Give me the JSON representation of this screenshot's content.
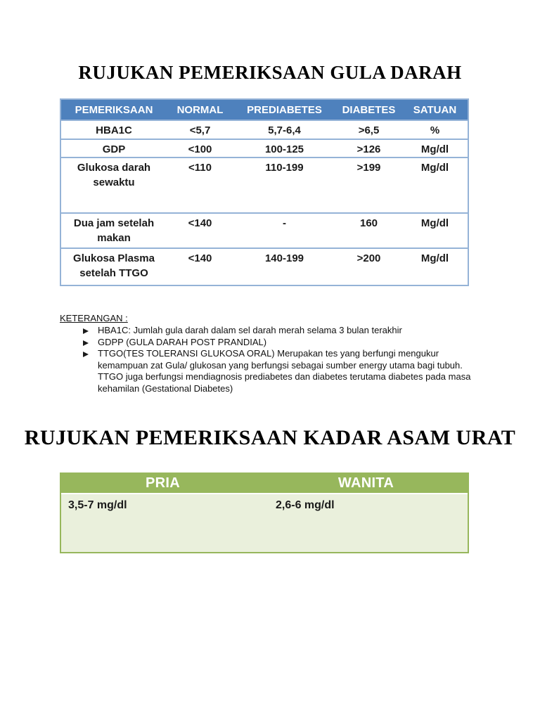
{
  "colors": {
    "table1_header_bg": "#4e81bd",
    "table1_border": "#95b3d7",
    "table2_header_bg": "#97b75c",
    "table2_body_bg": "#eaf0dc",
    "text": "#1a1a1a"
  },
  "section1": {
    "title": "RUJUKAN PEMERIKSAAN GULA DARAH",
    "table": {
      "columns": [
        "PEMERIKSAAN",
        "NORMAL",
        "PREDIABETES",
        "DIABETES",
        "SATUAN"
      ],
      "rows": [
        [
          "HBA1C",
          "<5,7",
          "5,7-6,4",
          ">6,5",
          "%"
        ],
        [
          "GDP",
          "<100",
          "100-125",
          ">126",
          "Mg/dl"
        ],
        [
          "Glukosa darah sewaktu",
          "<110",
          "110-199",
          ">199",
          "Mg/dl"
        ],
        [
          "Dua jam setelah makan",
          "<140",
          "-",
          "160",
          "Mg/dl"
        ],
        [
          "Glukosa Plasma setelah TTGO",
          "<140",
          "140-199",
          ">200",
          "Mg/dl"
        ]
      ]
    }
  },
  "keterangan": {
    "heading": "KETERANGAN :",
    "items": [
      "HBA1C: Jumlah gula darah dalam sel darah merah selama 3 bulan terakhir",
      "GDPP (GULA DARAH POST PRANDIAL)",
      "TTGO(TES TOLERANSI GLUKOSA ORAL) Merupakan tes yang berfungi mengukur kemampuan zat Gula/ glukosan yang berfungsi sebagai sumber energy utama bagi tubuh. TTGO juga berfungsi mendiagnosis prediabetes dan diabetes terutama diabetes pada masa kehamilan (Gestational Diabetes)"
    ]
  },
  "section2": {
    "title": "RUJUKAN PEMERIKSAAN KADAR ASAM URAT",
    "table": {
      "columns": [
        "PRIA",
        "WANITA"
      ],
      "rows": [
        [
          "3,5-7 mg/dl",
          "2,6-6 mg/dl"
        ]
      ]
    }
  }
}
